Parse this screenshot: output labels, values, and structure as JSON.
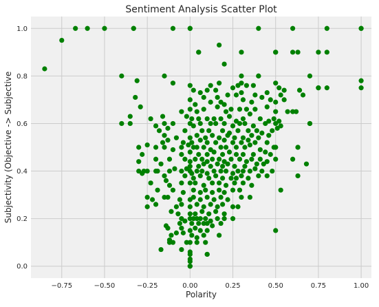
{
  "chart_data": {
    "type": "scatter",
    "title": "Sentiment Analysis Scatter Plot",
    "xlabel": "Polarity",
    "ylabel": "Subjectivity (Objective -> Subjective",
    "xlim": [
      -0.93,
      1.06
    ],
    "ylim": [
      -0.05,
      1.05
    ],
    "xticks": [
      -0.75,
      -0.5,
      -0.25,
      0.0,
      0.25,
      0.5,
      0.75,
      1.0
    ],
    "xtick_labels": [
      "−0.75",
      "−0.50",
      "−0.25",
      "0.00",
      "0.25",
      "0.50",
      "0.75",
      "1.00"
    ],
    "yticks": [
      0.0,
      0.2,
      0.4,
      0.6,
      0.8,
      1.0
    ],
    "ytick_labels": [
      "0.0",
      "0.2",
      "0.4",
      "0.6",
      "0.8",
      "1.0"
    ],
    "grid": true,
    "background_color": "#f0f0f0",
    "grid_color": "#cbcbcb",
    "marker_color": "#008000",
    "points": [
      [
        -0.85,
        0.83
      ],
      [
        -0.75,
        0.95
      ],
      [
        -0.67,
        1.0
      ],
      [
        -0.6,
        1.0
      ],
      [
        -0.5,
        1.0
      ],
      [
        -0.33,
        1.0
      ],
      [
        -0.33,
        1.0
      ],
      [
        -0.1,
        1.0
      ],
      [
        0.0,
        1.0
      ],
      [
        0.0,
        1.0
      ],
      [
        0.4,
        1.0
      ],
      [
        0.6,
        1.0
      ],
      [
        0.8,
        1.0
      ],
      [
        1.0,
        1.0
      ],
      [
        1.0,
        1.0
      ],
      [
        0.17,
        0.93
      ],
      [
        0.05,
        0.9
      ],
      [
        0.05,
        0.9
      ],
      [
        0.3,
        0.9
      ],
      [
        0.5,
        0.9
      ],
      [
        0.5,
        0.9
      ],
      [
        0.6,
        0.9
      ],
      [
        0.63,
        0.9
      ],
      [
        0.75,
        0.9
      ],
      [
        0.8,
        0.9
      ],
      [
        0.2,
        0.85
      ],
      [
        -0.4,
        0.8
      ],
      [
        -0.15,
        0.8
      ],
      [
        0.3,
        0.8
      ],
      [
        0.4,
        0.8
      ],
      [
        0.4,
        0.8
      ],
      [
        0.7,
        0.8
      ],
      [
        -0.31,
        0.78
      ],
      [
        -0.1,
        0.77
      ],
      [
        0.17,
        0.77
      ],
      [
        1.0,
        0.78
      ],
      [
        0.0,
        0.76
      ],
      [
        0.12,
        0.76
      ],
      [
        0.28,
        0.76
      ],
      [
        0.3,
        0.77
      ],
      [
        0.33,
        0.76
      ],
      [
        0.37,
        0.76
      ],
      [
        0.5,
        0.77
      ],
      [
        0.75,
        0.75
      ],
      [
        0.75,
        0.75
      ],
      [
        0.8,
        0.75
      ],
      [
        1.0,
        0.75
      ],
      [
        0.02,
        0.74
      ],
      [
        0.06,
        0.73
      ],
      [
        0.1,
        0.74
      ],
      [
        0.15,
        0.74
      ],
      [
        0.25,
        0.75
      ],
      [
        0.3,
        0.73
      ],
      [
        0.45,
        0.73
      ],
      [
        0.52,
        0.75
      ],
      [
        0.55,
        0.74
      ],
      [
        0.64,
        0.74
      ],
      [
        0.08,
        0.71
      ],
      [
        0.16,
        0.71
      ],
      [
        0.22,
        0.72
      ],
      [
        0.27,
        0.72
      ],
      [
        0.38,
        0.72
      ],
      [
        0.42,
        0.71
      ],
      [
        0.53,
        0.72
      ],
      [
        0.66,
        0.72
      ],
      [
        -0.32,
        0.71
      ],
      [
        0.0,
        0.7
      ],
      [
        0.03,
        0.68
      ],
      [
        0.12,
        0.69
      ],
      [
        0.18,
        0.69
      ],
      [
        0.2,
        0.68
      ],
      [
        0.31,
        0.7
      ],
      [
        0.36,
        0.69
      ],
      [
        0.47,
        0.7
      ],
      [
        0.5,
        0.69
      ],
      [
        0.55,
        0.7
      ],
      [
        -0.29,
        0.67
      ],
      [
        0.0,
        0.66
      ],
      [
        0.04,
        0.65
      ],
      [
        0.08,
        0.66
      ],
      [
        0.16,
        0.67
      ],
      [
        0.21,
        0.65
      ],
      [
        0.24,
        0.66
      ],
      [
        0.29,
        0.66
      ],
      [
        0.33,
        0.66
      ],
      [
        0.38,
        0.66
      ],
      [
        0.45,
        0.67
      ],
      [
        0.5,
        0.65
      ],
      [
        0.57,
        0.65
      ],
      [
        0.6,
        0.65
      ],
      [
        0.62,
        0.65
      ],
      [
        -0.35,
        0.63
      ],
      [
        -0.23,
        0.62
      ],
      [
        -0.16,
        0.63
      ],
      [
        -0.05,
        0.65
      ],
      [
        -0.02,
        0.63
      ],
      [
        0.01,
        0.62
      ],
      [
        0.05,
        0.62
      ],
      [
        0.1,
        0.62
      ],
      [
        0.14,
        0.62
      ],
      [
        0.18,
        0.62
      ],
      [
        0.23,
        0.63
      ],
      [
        0.27,
        0.61
      ],
      [
        0.31,
        0.62
      ],
      [
        0.35,
        0.64
      ],
      [
        0.41,
        0.62
      ],
      [
        0.46,
        0.61
      ],
      [
        0.49,
        0.62
      ],
      [
        0.52,
        0.61
      ],
      [
        -0.4,
        0.6
      ],
      [
        -0.35,
        0.6
      ],
      [
        -0.2,
        0.59
      ],
      [
        -0.15,
        0.6
      ],
      [
        -0.1,
        0.6
      ],
      [
        0.0,
        0.6
      ],
      [
        0.02,
        0.59
      ],
      [
        0.06,
        0.6
      ],
      [
        0.12,
        0.6
      ],
      [
        0.15,
        0.6
      ],
      [
        0.2,
        0.6
      ],
      [
        0.25,
        0.59
      ],
      [
        0.29,
        0.6
      ],
      [
        0.32,
        0.6
      ],
      [
        0.37,
        0.59
      ],
      [
        0.44,
        0.6
      ],
      [
        0.5,
        0.6
      ],
      [
        0.53,
        0.59
      ],
      [
        0.7,
        0.6
      ],
      [
        0.7,
        0.6
      ],
      [
        -0.18,
        0.57
      ],
      [
        -0.13,
        0.58
      ],
      [
        -0.03,
        0.57
      ],
      [
        0.07,
        0.57
      ],
      [
        0.11,
        0.57
      ],
      [
        0.19,
        0.57
      ],
      [
        0.23,
        0.56
      ],
      [
        0.28,
        0.57
      ],
      [
        0.34,
        0.57
      ],
      [
        0.39,
        0.57
      ],
      [
        0.42,
        0.56
      ],
      [
        0.48,
        0.57
      ],
      [
        0.51,
        0.58
      ],
      [
        -0.15,
        0.55
      ],
      [
        -0.08,
        0.54
      ],
      [
        0.0,
        0.54
      ],
      [
        0.04,
        0.55
      ],
      [
        0.09,
        0.54
      ],
      [
        0.13,
        0.55
      ],
      [
        0.17,
        0.54
      ],
      [
        0.22,
        0.55
      ],
      [
        0.26,
        0.54
      ],
      [
        0.31,
        0.54
      ],
      [
        0.36,
        0.55
      ],
      [
        0.4,
        0.54
      ],
      [
        0.46,
        0.55
      ],
      [
        -0.16,
        0.52
      ],
      [
        -0.13,
        0.53
      ],
      [
        -0.04,
        0.52
      ],
      [
        0.01,
        0.52
      ],
      [
        0.06,
        0.53
      ],
      [
        0.1,
        0.52
      ],
      [
        0.15,
        0.52
      ],
      [
        0.2,
        0.53
      ],
      [
        0.25,
        0.52
      ],
      [
        0.3,
        0.52
      ],
      [
        0.34,
        0.53
      ],
      [
        0.38,
        0.52
      ],
      [
        0.45,
        0.52
      ],
      [
        -0.3,
        0.5
      ],
      [
        -0.25,
        0.51
      ],
      [
        -0.2,
        0.5
      ],
      [
        -0.15,
        0.5
      ],
      [
        -0.1,
        0.49
      ],
      [
        -0.05,
        0.5
      ],
      [
        -0.01,
        0.51
      ],
      [
        0.02,
        0.5
      ],
      [
        0.04,
        0.5
      ],
      [
        0.08,
        0.5
      ],
      [
        0.12,
        0.49
      ],
      [
        0.18,
        0.5
      ],
      [
        0.21,
        0.5
      ],
      [
        0.27,
        0.5
      ],
      [
        0.32,
        0.5
      ],
      [
        0.35,
        0.51
      ],
      [
        0.41,
        0.49
      ],
      [
        0.49,
        0.5
      ],
      [
        0.5,
        0.5
      ],
      [
        0.5,
        0.5
      ],
      [
        0.63,
        0.5
      ],
      [
        0.63,
        0.5
      ],
      [
        -0.28,
        0.47
      ],
      [
        -0.05,
        0.47
      ],
      [
        0.0,
        0.48
      ],
      [
        0.05,
        0.47
      ],
      [
        0.1,
        0.47
      ],
      [
        0.14,
        0.48
      ],
      [
        0.19,
        0.47
      ],
      [
        0.23,
        0.48
      ],
      [
        0.27,
        0.47
      ],
      [
        0.31,
        0.47
      ],
      [
        0.37,
        0.47
      ],
      [
        0.44,
        0.48
      ],
      [
        0.47,
        0.47
      ],
      [
        -0.3,
        0.44
      ],
      [
        -0.2,
        0.45
      ],
      [
        -0.12,
        0.45
      ],
      [
        -0.03,
        0.45
      ],
      [
        0.0,
        0.44
      ],
      [
        0.03,
        0.45
      ],
      [
        0.07,
        0.45
      ],
      [
        0.1,
        0.44
      ],
      [
        0.13,
        0.45
      ],
      [
        0.17,
        0.45
      ],
      [
        0.2,
        0.44
      ],
      [
        0.24,
        0.45
      ],
      [
        0.29,
        0.45
      ],
      [
        0.33,
        0.44
      ],
      [
        0.36,
        0.45
      ],
      [
        0.41,
        0.45
      ],
      [
        0.45,
        0.44
      ],
      [
        0.5,
        0.45
      ],
      [
        0.6,
        0.45
      ],
      [
        -0.17,
        0.43
      ],
      [
        0.0,
        0.42
      ],
      [
        0.05,
        0.42
      ],
      [
        0.08,
        0.43
      ],
      [
        0.12,
        0.42
      ],
      [
        0.16,
        0.43
      ],
      [
        0.19,
        0.42
      ],
      [
        0.22,
        0.43
      ],
      [
        0.26,
        0.42
      ],
      [
        0.32,
        0.42
      ],
      [
        0.39,
        0.43
      ],
      [
        0.43,
        0.43
      ],
      [
        0.68,
        0.43
      ],
      [
        -0.3,
        0.4
      ],
      [
        -0.27,
        0.4
      ],
      [
        -0.25,
        0.4
      ],
      [
        -0.2,
        0.4
      ],
      [
        -0.19,
        0.4
      ],
      [
        -0.12,
        0.4
      ],
      [
        -0.09,
        0.41
      ],
      [
        -0.05,
        0.4
      ],
      [
        -0.02,
        0.41
      ],
      [
        0.0,
        0.4
      ],
      [
        0.01,
        0.39
      ],
      [
        0.04,
        0.4
      ],
      [
        0.07,
        0.4
      ],
      [
        0.1,
        0.39
      ],
      [
        0.14,
        0.4
      ],
      [
        0.18,
        0.4
      ],
      [
        0.21,
        0.4
      ],
      [
        0.25,
        0.39
      ],
      [
        0.28,
        0.4
      ],
      [
        0.31,
        0.4
      ],
      [
        0.35,
        0.4
      ],
      [
        0.38,
        0.41
      ],
      [
        0.42,
        0.4
      ],
      [
        0.48,
        0.4
      ],
      [
        -0.28,
        0.39
      ],
      [
        -0.15,
        0.38
      ],
      [
        -0.03,
        0.38
      ],
      [
        0.02,
        0.37
      ],
      [
        0.06,
        0.38
      ],
      [
        0.11,
        0.37
      ],
      [
        0.15,
        0.38
      ],
      [
        0.19,
        0.37
      ],
      [
        0.24,
        0.37
      ],
      [
        0.27,
        0.37
      ],
      [
        0.3,
        0.38
      ],
      [
        0.34,
        0.37
      ],
      [
        0.4,
        0.38
      ],
      [
        0.45,
        0.38
      ],
      [
        0.63,
        0.38
      ],
      [
        -0.23,
        0.35
      ],
      [
        -0.14,
        0.36
      ],
      [
        -0.12,
        0.34
      ],
      [
        -0.05,
        0.35
      ],
      [
        0.0,
        0.35
      ],
      [
        0.03,
        0.35
      ],
      [
        0.08,
        0.34
      ],
      [
        0.13,
        0.35
      ],
      [
        0.17,
        0.35
      ],
      [
        0.21,
        0.34
      ],
      [
        0.26,
        0.35
      ],
      [
        0.31,
        0.35
      ],
      [
        0.36,
        0.34
      ],
      [
        -0.19,
        0.32
      ],
      [
        -0.1,
        0.32
      ],
      [
        -0.04,
        0.31
      ],
      [
        0.02,
        0.32
      ],
      [
        0.06,
        0.31
      ],
      [
        0.09,
        0.32
      ],
      [
        0.13,
        0.31
      ],
      [
        0.17,
        0.32
      ],
      [
        0.2,
        0.31
      ],
      [
        0.25,
        0.32
      ],
      [
        0.29,
        0.32
      ],
      [
        0.53,
        0.32
      ],
      [
        -0.25,
        0.29
      ],
      [
        -0.22,
        0.28
      ],
      [
        -0.15,
        0.29
      ],
      [
        -0.13,
        0.29
      ],
      [
        -0.06,
        0.28
      ],
      [
        0.0,
        0.28
      ],
      [
        0.02,
        0.29
      ],
      [
        0.06,
        0.28
      ],
      [
        0.1,
        0.29
      ],
      [
        0.14,
        0.28
      ],
      [
        0.18,
        0.29
      ],
      [
        0.22,
        0.28
      ],
      [
        0.3,
        0.29
      ],
      [
        0.35,
        0.29
      ],
      [
        -0.25,
        0.25
      ],
      [
        -0.2,
        0.26
      ],
      [
        -0.08,
        0.25
      ],
      [
        -0.05,
        0.26
      ],
      [
        0.0,
        0.25
      ],
      [
        0.04,
        0.26
      ],
      [
        0.08,
        0.25
      ],
      [
        0.12,
        0.26
      ],
      [
        0.16,
        0.25
      ],
      [
        0.19,
        0.26
      ],
      [
        0.25,
        0.25
      ],
      [
        0.28,
        0.25
      ],
      [
        -0.11,
        0.23
      ],
      [
        -0.07,
        0.22
      ],
      [
        0.0,
        0.22
      ],
      [
        0.03,
        0.22
      ],
      [
        0.07,
        0.23
      ],
      [
        0.11,
        0.22
      ],
      [
        0.15,
        0.23
      ],
      [
        0.2,
        0.22
      ],
      [
        -0.05,
        0.2
      ],
      [
        0.0,
        0.2
      ],
      [
        0.02,
        0.2
      ],
      [
        0.04,
        0.2
      ],
      [
        0.06,
        0.2
      ],
      [
        0.09,
        0.2
      ],
      [
        0.12,
        0.19
      ],
      [
        0.16,
        0.2
      ],
      [
        0.2,
        0.2
      ],
      [
        0.25,
        0.2
      ],
      [
        -0.06,
        0.18
      ],
      [
        -0.03,
        0.19
      ],
      [
        0.01,
        0.18
      ],
      [
        0.05,
        0.18
      ],
      [
        0.08,
        0.18
      ],
      [
        0.1,
        0.18
      ],
      [
        0.13,
        0.17
      ],
      [
        0.18,
        0.18
      ],
      [
        -0.14,
        0.17
      ],
      [
        -0.13,
        0.16
      ],
      [
        -0.05,
        0.16
      ],
      [
        0.0,
        0.15
      ],
      [
        0.03,
        0.16
      ],
      [
        0.06,
        0.15
      ],
      [
        0.1,
        0.15
      ],
      [
        0.5,
        0.15
      ],
      [
        -0.08,
        0.14
      ],
      [
        -0.04,
        0.14
      ],
      [
        0.01,
        0.13
      ],
      [
        0.04,
        0.12
      ],
      [
        0.08,
        0.13
      ],
      [
        0.17,
        0.13
      ],
      [
        -0.12,
        0.11
      ],
      [
        -0.11,
        0.13
      ],
      [
        -0.1,
        0.1
      ],
      [
        -0.12,
        0.1
      ],
      [
        -0.02,
        0.1
      ],
      [
        0.0,
        0.1
      ],
      [
        0.04,
        0.1
      ],
      [
        0.09,
        0.1
      ],
      [
        -0.17,
        0.07
      ],
      [
        -0.05,
        0.07
      ],
      [
        0.0,
        0.06
      ],
      [
        0.0,
        0.05
      ],
      [
        0.1,
        0.05
      ],
      [
        0.1,
        0.05
      ],
      [
        0.0,
        0.03
      ],
      [
        0.0,
        0.02
      ],
      [
        0.0,
        0.0
      ],
      [
        0.0,
        0.0
      ]
    ]
  }
}
